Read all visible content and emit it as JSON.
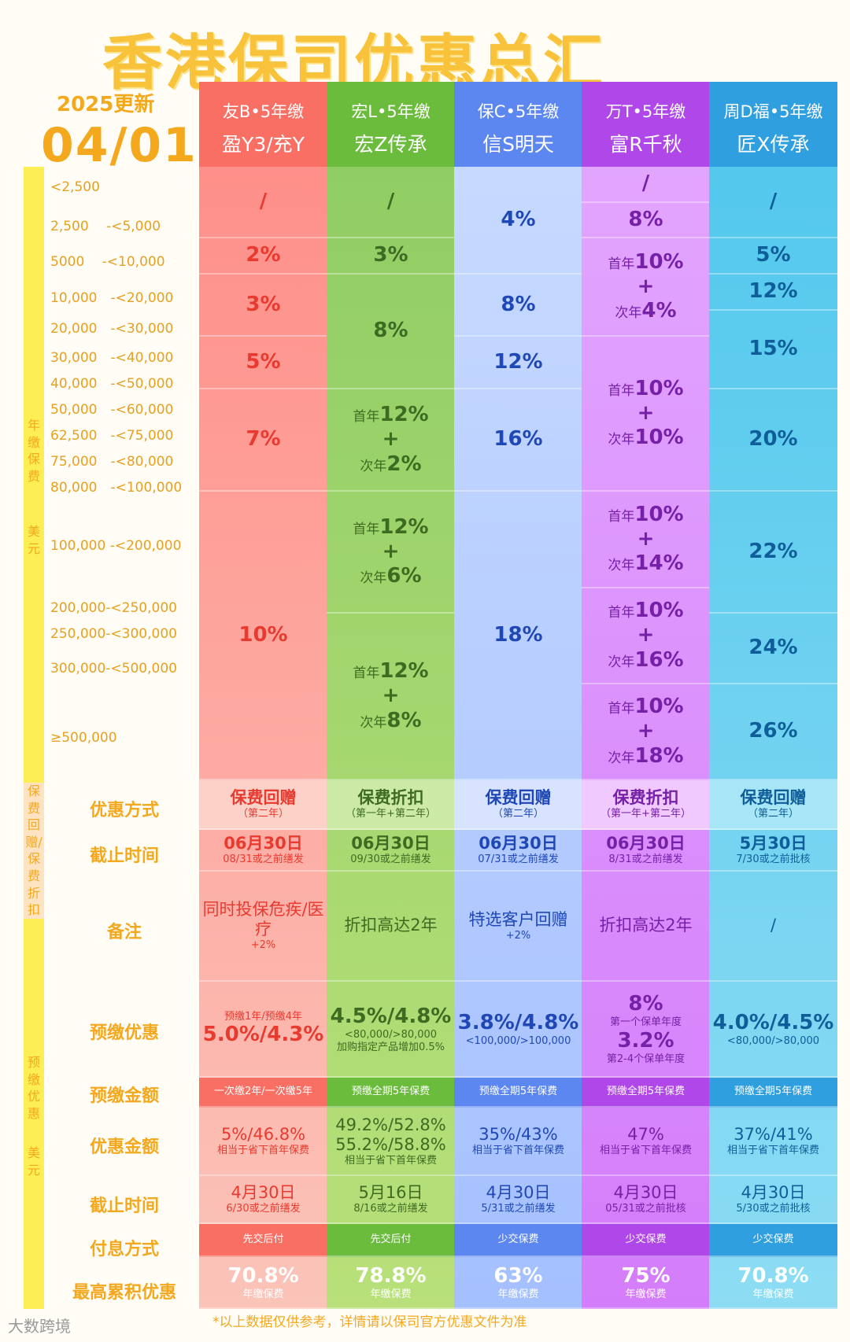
{
  "title": "香港保司优惠总汇",
  "update_label": "2025更新",
  "update_date": "04/01",
  "side_labels": {
    "premium": "年缴保费",
    "premium_unit": "美元",
    "rebate": "保费回赠/保费折扣",
    "prepay": "预缴优惠",
    "prepay_unit": "美元"
  },
  "ranges": [
    "<2,500",
    "2,500　 -<5,000",
    "5000　 -<10,000",
    "10,000　-<20,000",
    "20,000　-<30,000",
    "30,000　-<40,000",
    "40,000　-<50,000",
    "50,000　-<60,000",
    "62,500　-<75,000",
    "75,000　-<80,000",
    "80,000　-<100,000",
    "100,000 -<200,000",
    "200,000-<250,000",
    "250,000-<300,000",
    "300,000-<500,000",
    "≥500,000"
  ],
  "row_labels": [
    "优惠方式",
    "截止时间",
    "备注",
    "预缴优惠",
    "预缴金额",
    "优惠金额",
    "截止时间",
    "付息方式",
    "最高累积优惠"
  ],
  "companies": [
    {
      "line1": "友B•5年缴",
      "line2": "盈Y3/充Y",
      "tiers": [
        {
          "v": "/"
        },
        {
          "v": "2%"
        },
        {
          "v": "3%"
        },
        {
          "v": "5%"
        },
        {
          "v": "7%"
        },
        {
          "v": "10%"
        }
      ],
      "method": "保费回赠",
      "method_sub": "（第二年）",
      "deadline": "06月30日",
      "deadline_sub": "08/31或之前缮发",
      "note": "同时投保危疾/医疗",
      "note_sub": "+2%",
      "prepay_top": "预缴1年/预缴4年",
      "prepay": "5.0%/4.3%",
      "prepay_sub": "",
      "prepay_sub2": "",
      "prepay_amt": "一次缴2年/一次缴5年",
      "disc": "5%/46.8%",
      "disc2": "",
      "disc_sub": "相当于省下首年保费",
      "deadline2": "4月30日",
      "deadline2_sub": "6/30或之前缮发",
      "interest": "先交后付",
      "max": "70.8%",
      "max_sub": "年缴保费"
    },
    {
      "line1": "宏L•5年缴",
      "line2": "宏Z传承",
      "tiers": [
        {
          "v": "/"
        },
        {
          "v": "3%"
        },
        {
          "v": "8%"
        },
        {
          "a": "首年",
          "b": "12%",
          "c": "+",
          "d": "次年",
          "e": "2%"
        },
        {
          "a": "首年",
          "b": "12%",
          "c": "+",
          "d": "次年",
          "e": "6%"
        },
        {
          "a": "首年",
          "b": "12%",
          "c": "+",
          "d": "次年",
          "e": "8%"
        }
      ],
      "method": "保费折扣",
      "method_sub": "（第一年+第二年）",
      "deadline": "06月30日",
      "deadline_sub": "09/30或之前缮发",
      "note": "折扣高达2年",
      "note_sub": "",
      "prepay_top": "",
      "prepay": "4.5%/4.8%",
      "prepay_sub": "<80,000/>80,000",
      "prepay_sub2": "加购指定产品增加0.5%",
      "prepay_amt": "预缴全期5年保费",
      "disc": "49.2%/52.8%",
      "disc2": "55.2%/58.8%",
      "disc_sub": "相当于省下首年保费",
      "deadline2": "5月16日",
      "deadline2_sub": "8/16或之前缮发",
      "interest": "先交后付",
      "max": "78.8%",
      "max_sub": "年缴保费"
    },
    {
      "line1": "保C•5年缴",
      "line2": "信S明天",
      "tiers": [
        {
          "v": "4%"
        },
        {
          "v": "8%"
        },
        {
          "v": "12%"
        },
        {
          "v": "16%"
        },
        {
          "v": "18%"
        }
      ],
      "method": "保费回赠",
      "method_sub": "（第二年）",
      "deadline": "06月30日",
      "deadline_sub": "07/31或之前缮发",
      "note": "特选客户回赠",
      "note_sub": "+2%",
      "prepay_top": "",
      "prepay": "3.8%/4.8%",
      "prepay_sub": "<100,000/>100,000",
      "prepay_sub2": "",
      "prepay_amt": "预缴全期5年保费",
      "disc": "35%/43%",
      "disc2": "",
      "disc_sub": "相当于省下首年保费",
      "deadline2": "4月30日",
      "deadline2_sub": "5/31或之前缮发",
      "interest": "少交保费",
      "max": "63%",
      "max_sub": "年缴保费"
    },
    {
      "line1": "万T•5年缴",
      "line2": "富R千秋",
      "tiers": [
        {
          "v": "/"
        },
        {
          "v": "8%"
        },
        {
          "a": "首年",
          "b": "10%",
          "c": "+",
          "d": "次年",
          "e": "4%"
        },
        {
          "a": "首年",
          "b": "10%",
          "c": "+",
          "d": "次年",
          "e": "10%"
        },
        {
          "a": "首年",
          "b": "10%",
          "c": "+",
          "d": "次年",
          "e": "14%"
        },
        {
          "a": "首年",
          "b": "10%",
          "c": "+",
          "d": "次年",
          "e": "16%"
        },
        {
          "a": "首年",
          "b": "10%",
          "c": "+",
          "d": "次年",
          "e": "18%"
        }
      ],
      "method": "保费折扣",
      "method_sub": "（第一年+第二年）",
      "deadline": "06月30日",
      "deadline_sub": "8/31或之前缮发",
      "note": "折扣高达2年",
      "note_sub": "",
      "prepay_top": "8%",
      "prepay_top_sub": "第一个保单年度",
      "prepay": "3.2%",
      "prepay_sub": "第2-4个保单年度",
      "prepay_sub2": "",
      "prepay_amt": "预缴全期5年保费",
      "disc": "47%",
      "disc2": "",
      "disc_sub": "相当于省下首年保费",
      "deadline2": "4月30日",
      "deadline2_sub": "05/31或之前批核",
      "interest": "少交保费",
      "max": "75%",
      "max_sub": "年缴保费"
    },
    {
      "line1": "周D福•5年缴",
      "line2": "匠X传承",
      "tiers": [
        {
          "v": "/"
        },
        {
          "v": "5%"
        },
        {
          "v": "12%"
        },
        {
          "v": "15%"
        },
        {
          "v": "20%"
        },
        {
          "v": "22%"
        },
        {
          "v": "24%"
        },
        {
          "v": "26%"
        }
      ],
      "method": "保费回赠",
      "method_sub": "（第二年）",
      "deadline": "5月30日",
      "deadline_sub": "7/30或之前批核",
      "note": "/",
      "note_sub": "",
      "prepay_top": "",
      "prepay": "4.0%/4.5%",
      "prepay_sub": "<80,000/>80,000",
      "prepay_sub2": "",
      "prepay_amt": "预缴全期5年保费",
      "disc": "37%/41%",
      "disc2": "",
      "disc_sub": "相当于省下首年保费",
      "deadline2": "4月30日",
      "deadline2_sub": "5/30或之前批核",
      "interest": "少交保费",
      "max": "70.8%",
      "max_sub": "年缴保费"
    }
  ],
  "footer": "*以上数据仅供参考，详情请以保司官方优惠文件为准",
  "watermark": "大数跨境"
}
